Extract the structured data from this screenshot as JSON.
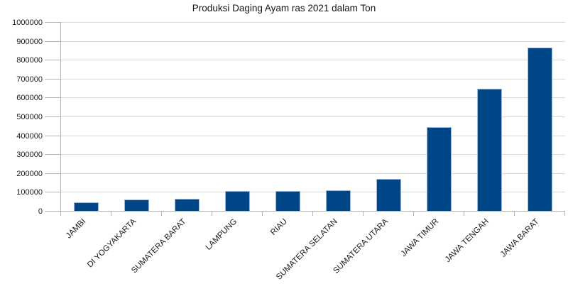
{
  "chart_data": {
    "type": "bar",
    "title": "Produksi Daging Ayam ras 2021 dalam Ton",
    "categories": [
      "JAMBI",
      "DI YOGYAKARTA",
      "SUMATERA BARAT",
      "LAMPUNG",
      "RIAU",
      "SUMATERA SELATAN",
      "SUMATERA UTARA",
      "JAWA TIMUR",
      "JAWA TENGAH",
      "JAWA BARAT"
    ],
    "values": [
      45000,
      62000,
      64000,
      104000,
      106000,
      108000,
      168000,
      443000,
      645000,
      865000
    ],
    "xlabel": "",
    "ylabel": "",
    "ylim": [
      0,
      1000000
    ],
    "ytick_interval": 100000,
    "y_tick_labels": [
      "0",
      "100000",
      "200000",
      "300000",
      "400000",
      "500000",
      "600000",
      "700000",
      "800000",
      "900000",
      "1000000"
    ],
    "grid": true,
    "legend": "none",
    "colors": {
      "bar_fill": "#004586",
      "bar_border": "#9bb9da",
      "gridline": "#d9d9d9",
      "axis": "#b3b3b3",
      "text": "#1a1a1a",
      "background": "#ffffff"
    }
  }
}
